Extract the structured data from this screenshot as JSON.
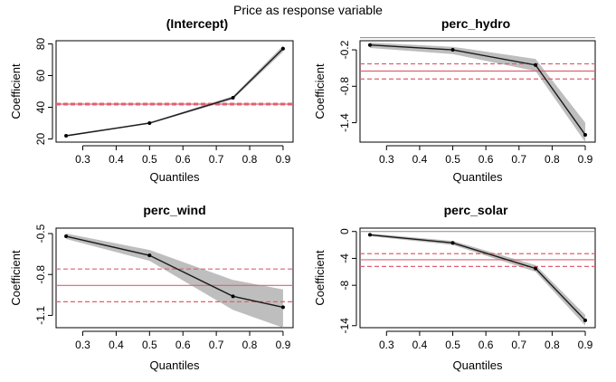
{
  "figure": {
    "title": "Price as response variable",
    "xlabel": "Quantiles",
    "ylabel": "Coefficient"
  },
  "colors": {
    "band": "#bebebe",
    "line": "#1a1a1a",
    "ols": "#e06070",
    "zero": "#888888"
  },
  "chart_data": [
    {
      "type": "line",
      "title": "(Intercept)",
      "xlabel": "Quantiles",
      "ylabel": "Coefficient",
      "x": [
        0.25,
        0.5,
        0.75,
        0.9
      ],
      "y": [
        22,
        30,
        46,
        77
      ],
      "ci_lower": [
        21.5,
        29.5,
        45,
        75
      ],
      "ci_upper": [
        22.5,
        30.5,
        47,
        79
      ],
      "ols": 42,
      "ols_ci": [
        41.5,
        42.5
      ],
      "xlim": [
        0.22,
        0.93
      ],
      "ylim": [
        18,
        82
      ],
      "xticks": [
        0.3,
        0.4,
        0.5,
        0.6,
        0.7,
        0.8,
        0.9
      ],
      "xtick_labels": [
        "0.3",
        "0.4",
        "0.5",
        "0.6",
        "0.7",
        "0.8",
        "0.9"
      ],
      "yticks": [
        20,
        40,
        60,
        80
      ],
      "ytick_labels": [
        "20",
        "40",
        "60",
        "80"
      ]
    },
    {
      "type": "line",
      "title": "perc_hydro",
      "xlabel": "Quantiles",
      "ylabel": "Coefficient",
      "x": [
        0.25,
        0.5,
        0.75,
        0.9
      ],
      "y": [
        -0.12,
        -0.2,
        -0.45,
        -1.6
      ],
      "ci_lower": [
        -0.17,
        -0.27,
        -0.55,
        -1.8
      ],
      "ci_upper": [
        -0.08,
        -0.15,
        -0.35,
        -1.4
      ],
      "ols": -0.55,
      "ols_ci": [
        -0.68,
        -0.43
      ],
      "zero": 0,
      "xlim": [
        0.22,
        0.93
      ],
      "ylim": [
        -1.72,
        -0.05
      ],
      "xticks": [
        0.3,
        0.4,
        0.5,
        0.6,
        0.7,
        0.8,
        0.9
      ],
      "xtick_labels": [
        "0.3",
        "0.4",
        "0.5",
        "0.6",
        "0.7",
        "0.8",
        "0.9"
      ],
      "yticks": [
        -0.2,
        -0.8,
        -1.4
      ],
      "ytick_labels": [
        "-0.2",
        "-0.8",
        "-1.4"
      ]
    },
    {
      "type": "line",
      "title": "perc_wind",
      "xlabel": "Quantiles",
      "ylabel": "Coefficient",
      "x": [
        0.25,
        0.5,
        0.75,
        0.9
      ],
      "y": [
        -0.52,
        -0.66,
        -0.96,
        -1.04
      ],
      "ci_lower": [
        -0.54,
        -0.7,
        -1.06,
        -1.19
      ],
      "ci_upper": [
        -0.5,
        -0.62,
        -0.84,
        -0.91
      ],
      "ols": -0.88,
      "ols_ci": [
        -1.0,
        -0.76
      ],
      "xlim": [
        0.22,
        0.93
      ],
      "ylim": [
        -1.19,
        -0.46
      ],
      "xticks": [
        0.3,
        0.4,
        0.5,
        0.6,
        0.7,
        0.8,
        0.9
      ],
      "xtick_labels": [
        "0.3",
        "0.4",
        "0.5",
        "0.6",
        "0.7",
        "0.8",
        "0.9"
      ],
      "yticks": [
        -0.5,
        -0.8,
        -1.1
      ],
      "ytick_labels": [
        "-0.5",
        "-0.8",
        "-1.1"
      ]
    },
    {
      "type": "line",
      "title": "perc_solar",
      "xlabel": "Quantiles",
      "ylabel": "Coefficient",
      "x": [
        0.25,
        0.5,
        0.75,
        0.9
      ],
      "y": [
        -0.5,
        -1.7,
        -5.5,
        -13.2
      ],
      "ci_lower": [
        -0.7,
        -2.0,
        -6.0,
        -14.0
      ],
      "ci_upper": [
        -0.3,
        -1.4,
        -5.0,
        -12.4
      ],
      "ols": -4.2,
      "ols_ci": [
        -5.2,
        -3.3
      ],
      "zero": 0,
      "xlim": [
        0.22,
        0.93
      ],
      "ylim": [
        -14.3,
        0.5
      ],
      "xticks": [
        0.3,
        0.4,
        0.5,
        0.6,
        0.7,
        0.8,
        0.9
      ],
      "xtick_labels": [
        "0.3",
        "0.4",
        "0.5",
        "0.6",
        "0.7",
        "0.8",
        "0.9"
      ],
      "yticks": [
        0,
        -4,
        -8,
        -14
      ],
      "ytick_labels": [
        "0",
        "-4",
        "-8",
        "-14"
      ]
    }
  ]
}
